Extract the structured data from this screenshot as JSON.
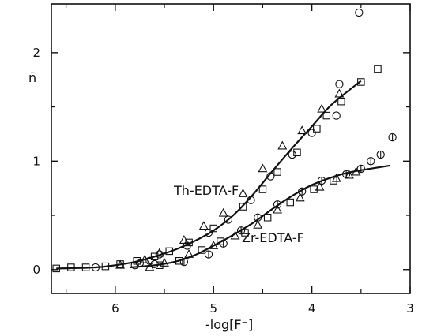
{
  "chart_data": {
    "type": "scatter",
    "title": "",
    "xlabel": "-log[F⁻]",
    "ylabel": "n̄",
    "x_reversed": true,
    "xlim": [
      6.65,
      3.0
    ],
    "ylim": [
      -0.22,
      2.45
    ],
    "xticks": [
      6,
      5,
      4,
      3
    ],
    "xtick_labels": [
      "6",
      "5",
      "4",
      "3"
    ],
    "yticks": [
      0,
      1,
      2
    ],
    "ytick_labels": [
      "0",
      "1",
      "2"
    ],
    "grid": false,
    "legend": "none",
    "annotations": [
      {
        "text": "Th-EDTA-F",
        "series": "Th-EDTA-F"
      },
      {
        "text": "Zr-EDTA-F",
        "series": "Zr-EDTA-F"
      }
    ],
    "series": [
      {
        "name": "Th-EDTA-F",
        "kind": "line",
        "x": [
          6.6,
          6.2,
          6.0,
          5.8,
          5.6,
          5.4,
          5.2,
          5.0,
          4.8,
          4.6,
          4.4,
          4.2,
          4.0,
          3.8,
          3.5
        ],
        "y": [
          0.01,
          0.02,
          0.04,
          0.07,
          0.12,
          0.18,
          0.26,
          0.36,
          0.5,
          0.69,
          0.91,
          1.12,
          1.32,
          1.52,
          1.74
        ]
      },
      {
        "name": "Zr-EDTA-F",
        "kind": "line",
        "x": [
          5.85,
          5.6,
          5.4,
          5.2,
          5.0,
          4.8,
          4.6,
          4.4,
          4.2,
          4.0,
          3.8,
          3.6,
          3.2
        ],
        "y": [
          0.02,
          0.04,
          0.07,
          0.13,
          0.22,
          0.32,
          0.43,
          0.56,
          0.68,
          0.78,
          0.85,
          0.9,
          0.96
        ]
      },
      {
        "name": "circles",
        "kind": "circle",
        "x": [
          6.2,
          5.75,
          5.65,
          5.55,
          5.27,
          5.05,
          4.85,
          4.62,
          4.42,
          4.2,
          4.0,
          3.75,
          3.72,
          3.52,
          5.8,
          5.6
        ],
        "y": [
          0.02,
          0.06,
          0.08,
          0.14,
          0.22,
          0.34,
          0.46,
          0.64,
          0.86,
          1.06,
          1.26,
          1.42,
          1.71,
          2.37,
          0.04,
          0.05
        ]
      },
      {
        "name": "squares",
        "kind": "square",
        "x": [
          6.6,
          6.45,
          6.3,
          6.1,
          5.95,
          5.78,
          5.6,
          5.45,
          5.25,
          5.0,
          4.7,
          4.5,
          4.35,
          4.15,
          3.95,
          3.85,
          3.7,
          3.5,
          3.33,
          5.55,
          5.35,
          5.12,
          4.93,
          4.68,
          4.45,
          4.22,
          3.98,
          3.78
        ],
        "y": [
          0.01,
          0.02,
          0.02,
          0.03,
          0.05,
          0.08,
          0.12,
          0.17,
          0.25,
          0.38,
          0.58,
          0.74,
          0.9,
          1.08,
          1.3,
          1.42,
          1.55,
          1.73,
          1.85,
          0.04,
          0.08,
          0.18,
          0.26,
          0.34,
          0.48,
          0.62,
          0.74,
          0.82
        ]
      },
      {
        "name": "triangles",
        "kind": "triangle",
        "x": [
          5.95,
          5.7,
          5.55,
          5.3,
          5.1,
          4.9,
          4.7,
          4.5,
          4.3,
          4.1,
          3.9,
          3.72,
          5.65,
          5.5,
          5.25,
          5.0,
          4.78,
          4.55,
          4.35,
          4.12,
          3.92,
          3.75,
          3.62,
          3.55
        ],
        "y": [
          0.04,
          0.09,
          0.15,
          0.27,
          0.4,
          0.52,
          0.7,
          0.93,
          1.14,
          1.28,
          1.48,
          1.62,
          0.02,
          0.06,
          0.14,
          0.22,
          0.31,
          0.41,
          0.55,
          0.66,
          0.76,
          0.84,
          0.87,
          0.9
        ]
      },
      {
        "name": "circles-with-bar",
        "kind": "circle-bar",
        "x": [
          5.3,
          5.05,
          4.9,
          4.72,
          4.55,
          4.35,
          4.1,
          3.9,
          3.65,
          3.5,
          3.4,
          3.3,
          3.18
        ],
        "y": [
          0.07,
          0.14,
          0.24,
          0.36,
          0.48,
          0.6,
          0.72,
          0.82,
          0.88,
          0.93,
          1.0,
          1.06,
          1.22
        ]
      }
    ]
  }
}
